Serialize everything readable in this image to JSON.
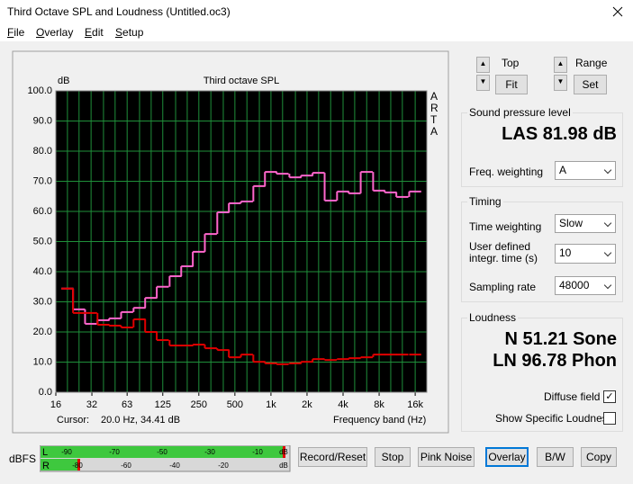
{
  "window": {
    "title": "Third Octave SPL and Loudness (Untitled.oc3)"
  },
  "menu": [
    "File",
    "Overlay",
    "Edit",
    "Setup"
  ],
  "chart_data": {
    "type": "step",
    "title": "Third octave SPL",
    "y_label": "dB",
    "x_label": "Frequency band (Hz)",
    "watermark": "ARTA",
    "x": [
      20,
      25,
      31.5,
      40,
      50,
      63,
      80,
      100,
      125,
      160,
      200,
      250,
      315,
      400,
      500,
      630,
      800,
      1000,
      1250,
      1600,
      2000,
      2500,
      3150,
      4000,
      5000,
      6300,
      8000,
      10000,
      12500,
      16000
    ],
    "series": [
      {
        "color": "#ff66cc",
        "values": [
          34.4,
          27.5,
          22.7,
          23.9,
          24.5,
          26.6,
          28,
          31.3,
          35,
          38.5,
          41.8,
          46.6,
          52.5,
          59.7,
          62.7,
          63.3,
          68.4,
          73.1,
          72.5,
          71.3,
          71.9,
          72.8,
          63.6,
          66.6,
          66,
          73.1,
          66.9,
          66.3,
          64.8,
          66.6
        ]
      },
      {
        "color": "#e00000",
        "values": [
          34.4,
          26.3,
          26.3,
          22.4,
          22.1,
          21.5,
          24.2,
          20,
          17.3,
          15.5,
          15.5,
          15.8,
          14.6,
          14,
          11.6,
          12.5,
          10.1,
          9.6,
          9.3,
          9.6,
          10.1,
          11,
          10.7,
          11,
          11.3,
          11.6,
          12.5,
          12.5,
          12.5,
          12.5
        ]
      }
    ],
    "xlim": [
      16,
      20000
    ],
    "log_x": true,
    "xticks": [
      16,
      32,
      63,
      125,
      250,
      500,
      {
        "value": 1000,
        "label": "1k"
      },
      {
        "value": 2000,
        "label": "2k"
      },
      {
        "value": 4000,
        "label": "4k"
      },
      {
        "value": 8000,
        "label": "8k"
      },
      {
        "value": 16000,
        "label": "16k"
      }
    ],
    "ylim": [
      0,
      100
    ],
    "yticks": [
      {
        "value": 0,
        "label": "0.0"
      },
      {
        "value": 10,
        "label": "10.0"
      },
      {
        "value": 20,
        "label": "20.0"
      },
      {
        "value": 30,
        "label": "30.0"
      },
      {
        "value": 40,
        "label": "40.0"
      },
      {
        "value": 50,
        "label": "50.0"
      },
      {
        "value": 60,
        "label": "60.0"
      },
      {
        "value": 70,
        "label": "70.0"
      },
      {
        "value": 80,
        "label": "80.0"
      },
      {
        "value": 90,
        "label": "90.0"
      },
      {
        "value": 100,
        "label": "100.0"
      }
    ],
    "grid": true,
    "grid_color": "#1f8f3a",
    "background": "#000000"
  },
  "cursor": {
    "label": "Cursor:",
    "value": "20.0 Hz, 34.41 dB"
  },
  "controls": {
    "top": "Top",
    "fit": "Fit",
    "range": "Range",
    "set": "Set"
  },
  "spl": {
    "title": "Sound pressure level",
    "reading": "LAS 81.98 dB",
    "freq_weighting_label": "Freq. weighting",
    "freq_weighting": "A"
  },
  "timing": {
    "title": "Timing",
    "time_weighting_label": "Time weighting",
    "time_weighting": "Slow",
    "integr_time_label": "User defined integr. time (s)",
    "integr_time": "10",
    "sampling_rate_label": "Sampling rate",
    "sampling_rate": "48000"
  },
  "loudness": {
    "title": "Loudness",
    "sone": "N 51.21 Sone",
    "phon": "LN 96.78 Phon",
    "diffuse_field": "Diffuse field",
    "show_specific": "Show Specific Loudness"
  },
  "meter": {
    "label": "dBFS",
    "left": {
      "channel": "L",
      "scale": [
        "-90",
        "-70",
        "-50",
        "-30",
        "-10",
        "dB"
      ]
    },
    "right": {
      "channel": "R",
      "scale": [
        "-80",
        "-60",
        "-40",
        "-20",
        "dB"
      ]
    }
  },
  "buttons": [
    "Record/Reset",
    "Stop",
    "Pink Noise",
    "Overlay",
    "B/W",
    "Copy"
  ]
}
